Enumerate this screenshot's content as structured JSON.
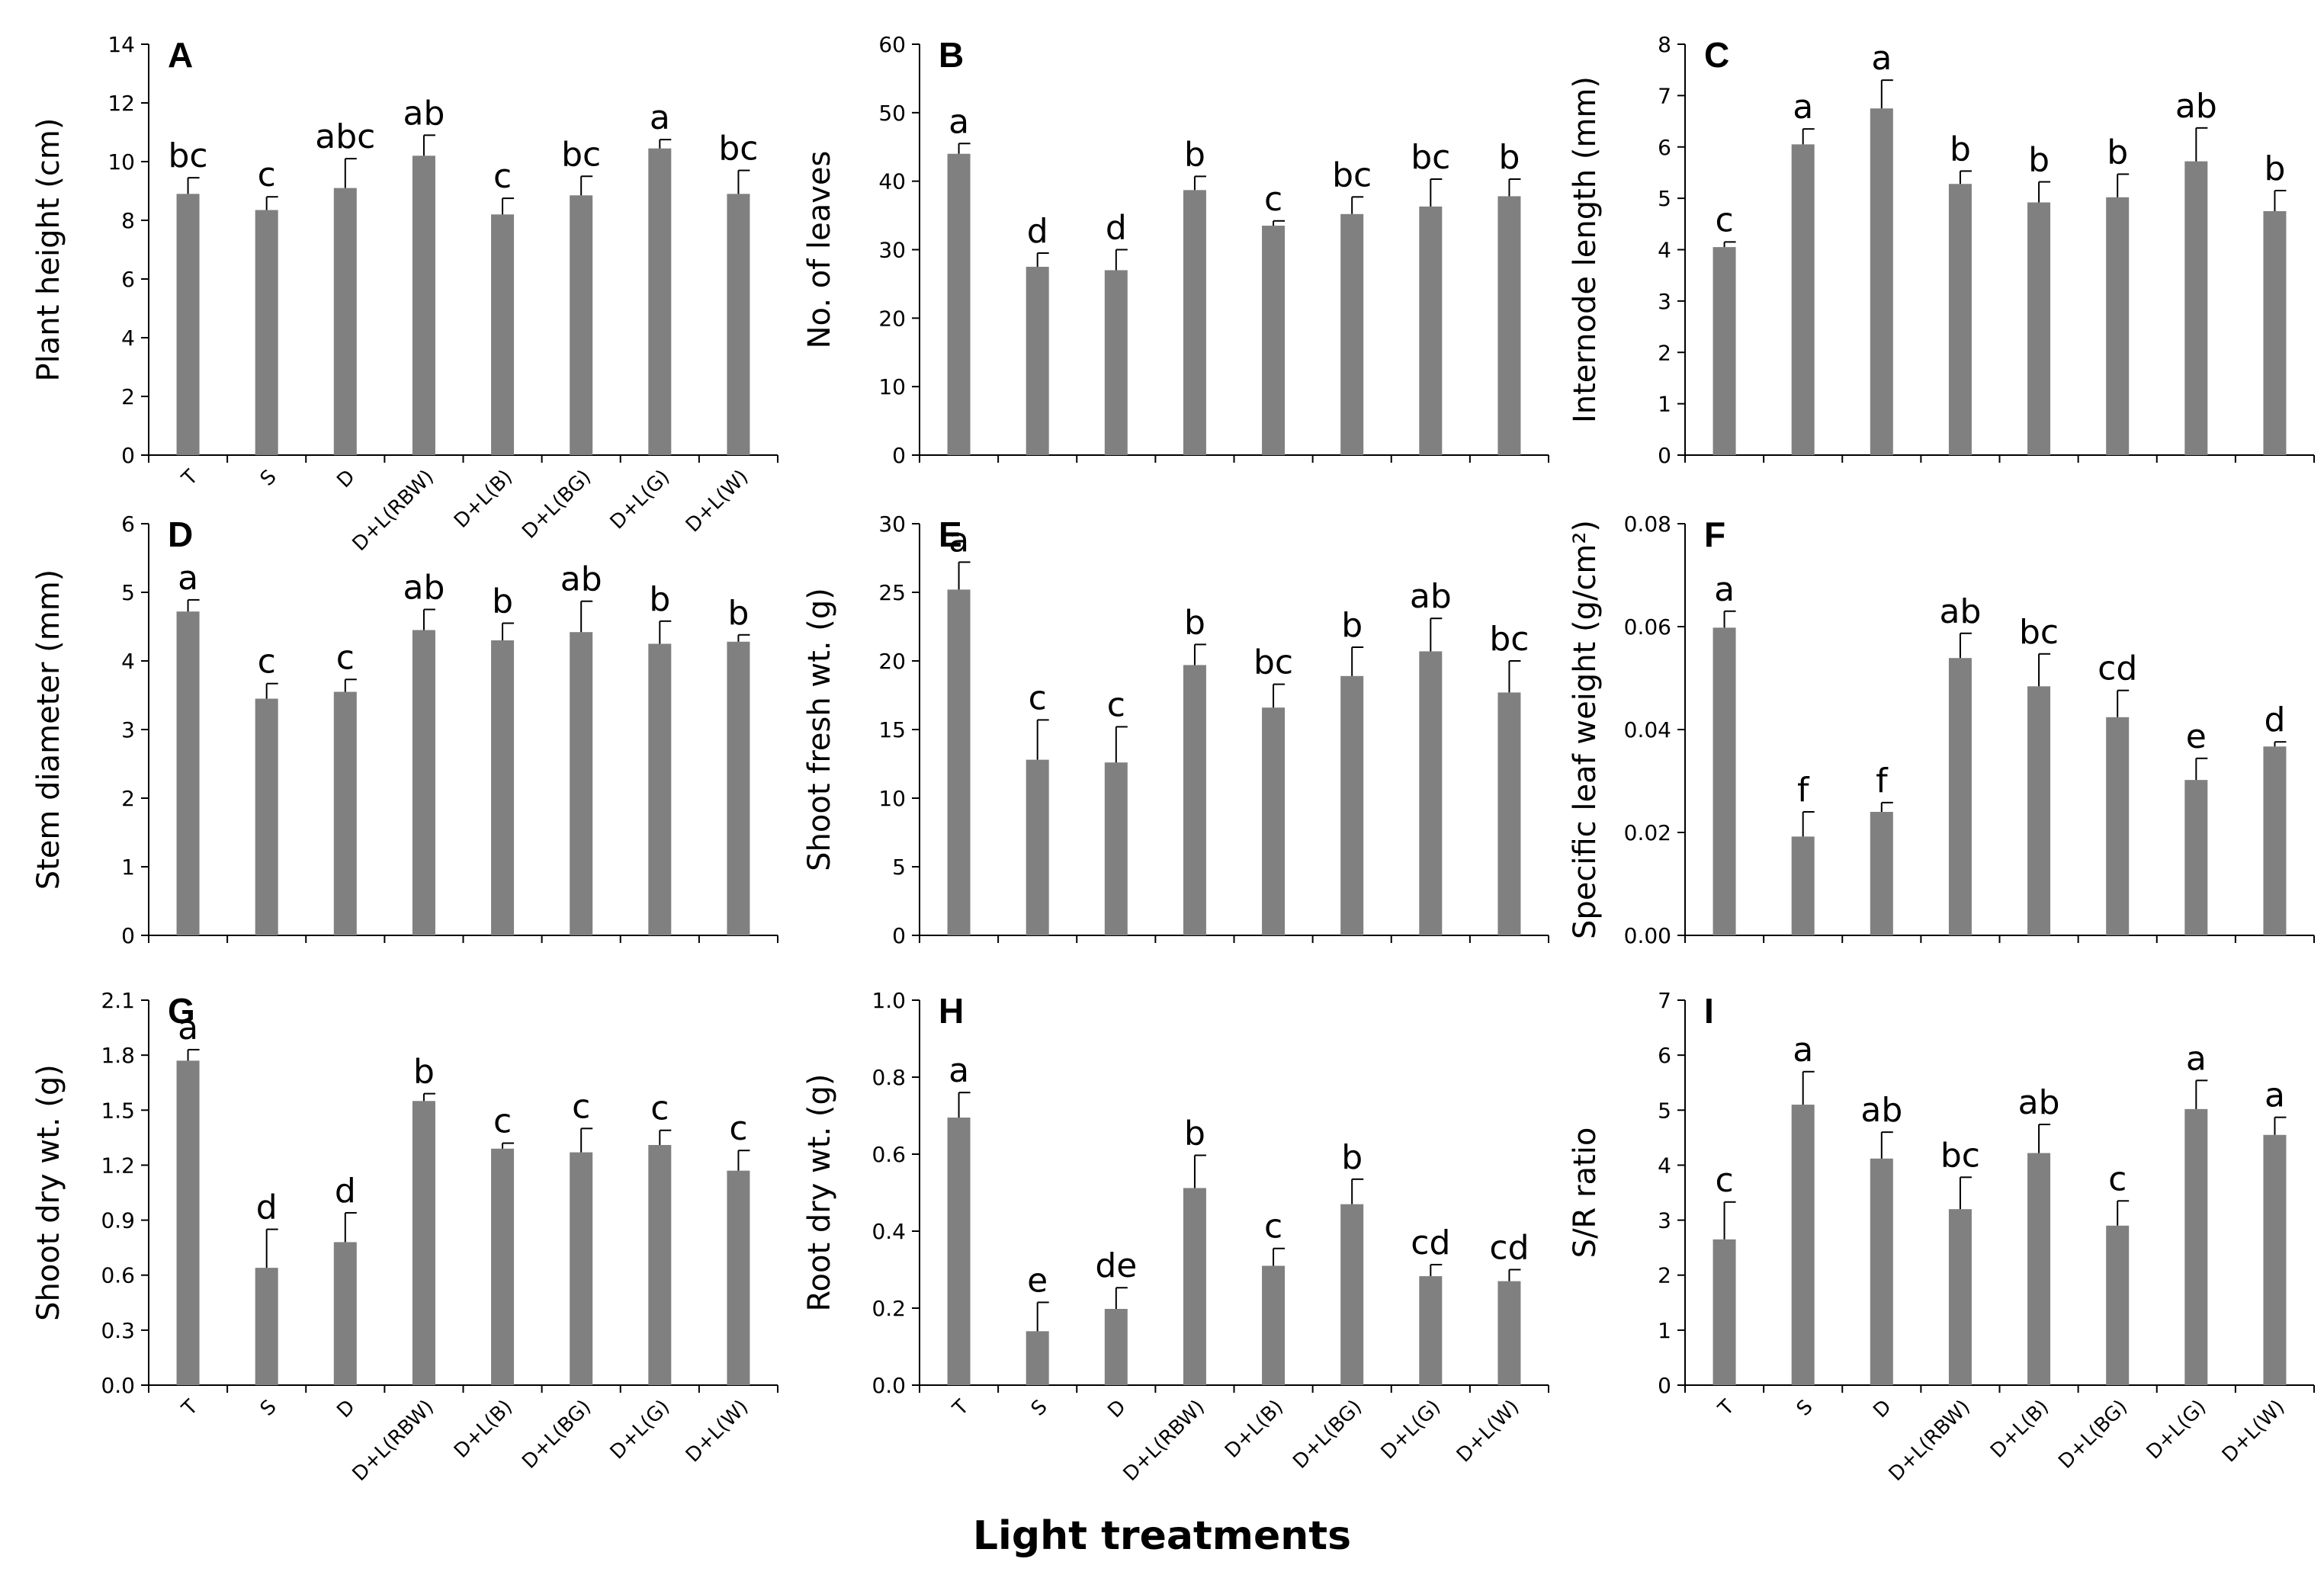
{
  "figure": {
    "x_axis_title": "Light treatments",
    "categories": [
      "T",
      "S",
      "D",
      "D+L(RBW)",
      "D+L(B)",
      "D+L(BG)",
      "D+L(G)",
      "D+L(W)"
    ],
    "bar_color": "#808080"
  },
  "chart_data": [
    {
      "type": "bar",
      "panel": "A",
      "ylabel": "Plant height (cm)",
      "ylim": [
        0,
        14
      ],
      "yticks": [
        "0",
        "2",
        "4",
        "6",
        "8",
        "10",
        "12",
        "14"
      ],
      "show_xticklabels": true,
      "categories": [
        "T",
        "S",
        "D",
        "D+L(RBW)",
        "D+L(B)",
        "D+L(BG)",
        "D+L(G)",
        "D+L(W)"
      ],
      "values": [
        8.9,
        8.35,
        9.1,
        10.2,
        8.2,
        8.85,
        10.45,
        8.9
      ],
      "errors": [
        0.55,
        0.45,
        1.0,
        0.7,
        0.55,
        0.65,
        0.3,
        0.8
      ],
      "letters": [
        "bc",
        "c",
        "abc",
        "ab",
        "c",
        "bc",
        "a",
        "bc"
      ]
    },
    {
      "type": "bar",
      "panel": "B",
      "ylabel": "No. of leaves",
      "ylim": [
        0,
        60
      ],
      "yticks": [
        "0",
        "10",
        "20",
        "30",
        "40",
        "50",
        "60"
      ],
      "show_xticklabels": false,
      "categories": [
        "T",
        "S",
        "D",
        "D+L(RBW)",
        "D+L(B)",
        "D+L(BG)",
        "D+L(G)",
        "D+L(W)"
      ],
      "values": [
        44,
        27.5,
        27,
        38.7,
        33.5,
        35.2,
        36.3,
        37.8
      ],
      "errors": [
        1.5,
        2.0,
        3.0,
        2.0,
        0.7,
        2.5,
        4.0,
        2.5
      ],
      "letters": [
        "a",
        "d",
        "d",
        "b",
        "c",
        "bc",
        "bc",
        "b"
      ]
    },
    {
      "type": "bar",
      "panel": "C",
      "ylabel": "Internode length (mm)",
      "ylim": [
        0,
        8
      ],
      "yticks": [
        "0",
        "1",
        "2",
        "3",
        "4",
        "5",
        "6",
        "7",
        "8"
      ],
      "show_xticklabels": false,
      "categories": [
        "T",
        "S",
        "D",
        "D+L(RBW)",
        "D+L(B)",
        "D+L(BG)",
        "D+L(G)",
        "D+L(W)"
      ],
      "values": [
        4.05,
        6.05,
        6.75,
        5.28,
        4.92,
        5.02,
        5.72,
        4.75
      ],
      "errors": [
        0.1,
        0.3,
        0.55,
        0.25,
        0.4,
        0.45,
        0.65,
        0.4
      ],
      "letters": [
        "c",
        "a",
        "a",
        "b",
        "b",
        "b",
        "ab",
        "b"
      ]
    },
    {
      "type": "bar",
      "panel": "D",
      "ylabel": "Stem diameter (mm)",
      "ylim": [
        0,
        6
      ],
      "yticks": [
        "0",
        "1",
        "2",
        "3",
        "4",
        "5",
        "6"
      ],
      "show_xticklabels": false,
      "categories": [
        "T",
        "S",
        "D",
        "D+L(RBW)",
        "D+L(B)",
        "D+L(BG)",
        "D+L(G)",
        "D+L(W)"
      ],
      "values": [
        4.72,
        3.45,
        3.55,
        4.45,
        4.3,
        4.42,
        4.25,
        4.28
      ],
      "errors": [
        0.17,
        0.22,
        0.18,
        0.3,
        0.25,
        0.45,
        0.33,
        0.1
      ],
      "letters": [
        "a",
        "c",
        "c",
        "ab",
        "b",
        "ab",
        "b",
        "b"
      ]
    },
    {
      "type": "bar",
      "panel": "E",
      "ylabel": "Shoot fresh wt. (g)",
      "ylim": [
        0,
        30
      ],
      "yticks": [
        "0",
        "5",
        "10",
        "15",
        "20",
        "25",
        "30"
      ],
      "show_xticklabels": false,
      "categories": [
        "T",
        "S",
        "D",
        "D+L(RBW)",
        "D+L(B)",
        "D+L(BG)",
        "D+L(G)",
        "D+L(W)"
      ],
      "values": [
        25.2,
        12.8,
        12.6,
        19.7,
        16.6,
        18.9,
        20.7,
        17.7
      ],
      "errors": [
        2.0,
        2.9,
        2.6,
        1.5,
        1.7,
        2.1,
        2.4,
        2.3
      ],
      "letters": [
        "a",
        "c",
        "c",
        "b",
        "bc",
        "b",
        "ab",
        "bc"
      ]
    },
    {
      "type": "bar",
      "panel": "F",
      "ylabel": "Specific leaf weight (g/cm²)",
      "ylim": [
        0,
        0.08
      ],
      "yticks": [
        "0.00",
        "0.02",
        "0.04",
        "0.06",
        "0.08"
      ],
      "show_xticklabels": false,
      "categories": [
        "T",
        "S",
        "D",
        "D+L(RBW)",
        "D+L(B)",
        "D+L(BG)",
        "D+L(G)",
        "D+L(W)"
      ],
      "values": [
        0.0598,
        0.0192,
        0.024,
        0.0539,
        0.0484,
        0.0424,
        0.0302,
        0.0367
      ],
      "errors": [
        0.0032,
        0.0048,
        0.0018,
        0.0048,
        0.0063,
        0.0052,
        0.0042,
        0.0009
      ],
      "letters": [
        "a",
        "f",
        "f",
        "ab",
        "bc",
        "cd",
        "e",
        "d"
      ]
    },
    {
      "type": "bar",
      "panel": "G",
      "ylabel": "Shoot dry wt. (g)",
      "ylim": [
        0,
        2.1
      ],
      "yticks": [
        "0.0",
        "0.3",
        "0.6",
        "0.9",
        "1.2",
        "1.5",
        "1.8",
        "2.1"
      ],
      "show_xticklabels": true,
      "categories": [
        "T",
        "S",
        "D",
        "D+L(RBW)",
        "D+L(B)",
        "D+L(BG)",
        "D+L(G)",
        "D+L(W)"
      ],
      "values": [
        1.77,
        0.64,
        0.78,
        1.55,
        1.29,
        1.27,
        1.31,
        1.17
      ],
      "errors": [
        0.06,
        0.21,
        0.16,
        0.04,
        0.03,
        0.13,
        0.08,
        0.11
      ],
      "letters": [
        "a",
        "d",
        "d",
        "b",
        "c",
        "c",
        "c",
        "c"
      ]
    },
    {
      "type": "bar",
      "panel": "H",
      "ylabel": "Root dry wt. (g)",
      "ylim": [
        0,
        1.0
      ],
      "yticks": [
        "0.0",
        "0.2",
        "0.4",
        "0.6",
        "0.8",
        "1.0"
      ],
      "show_xticklabels": true,
      "categories": [
        "T",
        "S",
        "D",
        "D+L(RBW)",
        "D+L(B)",
        "D+L(BG)",
        "D+L(G)",
        "D+L(W)"
      ],
      "values": [
        0.695,
        0.14,
        0.198,
        0.512,
        0.31,
        0.47,
        0.283,
        0.27
      ],
      "errors": [
        0.065,
        0.075,
        0.055,
        0.085,
        0.045,
        0.065,
        0.03,
        0.03
      ],
      "letters": [
        "a",
        "e",
        "de",
        "b",
        "c",
        "b",
        "cd",
        "cd"
      ]
    },
    {
      "type": "bar",
      "panel": "I",
      "ylabel": "S/R ratio",
      "ylim": [
        0,
        7
      ],
      "yticks": [
        "0",
        "1",
        "2",
        "3",
        "4",
        "5",
        "6",
        "7"
      ],
      "show_xticklabels": true,
      "categories": [
        "T",
        "S",
        "D",
        "D+L(RBW)",
        "D+L(B)",
        "D+L(BG)",
        "D+L(G)",
        "D+L(W)"
      ],
      "values": [
        2.65,
        5.1,
        4.12,
        3.2,
        4.22,
        2.9,
        5.02,
        4.55
      ],
      "errors": [
        0.68,
        0.6,
        0.48,
        0.58,
        0.52,
        0.45,
        0.52,
        0.32
      ],
      "letters": [
        "c",
        "a",
        "ab",
        "bc",
        "ab",
        "c",
        "a",
        "a"
      ]
    }
  ]
}
